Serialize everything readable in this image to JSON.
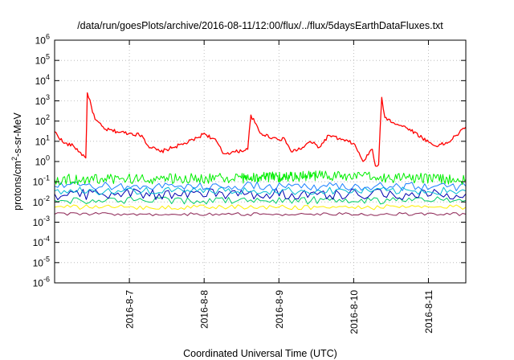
{
  "chart_data": {
    "type": "line",
    "title": "/data/run/goesPlots/archive/2016-08-11/12:00/flux/../flux/5daysEarthDataFluxes.txt",
    "xlabel": "Coordinated Universal Time (UTC)",
    "ylabel": {
      "base": "protons/cm",
      "sup": "2",
      "rest": "-s-sr-MeV"
    },
    "yscale": "log",
    "ylim": [
      1e-06,
      1000000.0
    ],
    "xlim": [
      "2016-08-06T00:00",
      "2016-08-11T12:00"
    ],
    "grid": true,
    "y_ticks": [
      {
        "exp": "-6",
        "value": 1e-06
      },
      {
        "exp": "-5",
        "value": 1e-05
      },
      {
        "exp": "-4",
        "value": 0.0001
      },
      {
        "exp": "-3",
        "value": 0.001
      },
      {
        "exp": "-2",
        "value": 0.01
      },
      {
        "exp": "-1",
        "value": 0.1
      },
      {
        "exp": "0",
        "value": 1
      },
      {
        "exp": "1",
        "value": 10
      },
      {
        "exp": "2",
        "value": 100
      },
      {
        "exp": "3",
        "value": 1000
      },
      {
        "exp": "4",
        "value": 10000
      },
      {
        "exp": "5",
        "value": 100000
      },
      {
        "exp": "6",
        "value": 1000000
      }
    ],
    "x_ticks": [
      {
        "label": "2016-8-7",
        "value": "2016-08-07T00:00"
      },
      {
        "label": "2016-8-8",
        "value": "2016-08-08T00:00"
      },
      {
        "label": "2016-8-9",
        "value": "2016-08-09T00:00"
      },
      {
        "label": "2016-8-10",
        "value": "2016-08-10T00:00"
      },
      {
        "label": "2016-8-11",
        "value": "2016-08-11T00:00"
      }
    ],
    "series": [
      {
        "color": "#ff0000",
        "points": [
          [
            "2016-08-06T00:00",
            30
          ],
          [
            "2016-08-06T03:00",
            8
          ],
          [
            "2016-08-06T06:00",
            6
          ],
          [
            "2016-08-06T08:00",
            3
          ],
          [
            "2016-08-06T10:00",
            1.5
          ],
          [
            "2016-08-06T10:30",
            2500
          ],
          [
            "2016-08-06T13:00",
            120
          ],
          [
            "2016-08-06T16:00",
            40
          ],
          [
            "2016-08-06T20:00",
            30
          ],
          [
            "2016-08-07T00:00",
            25
          ],
          [
            "2016-08-07T04:00",
            20
          ],
          [
            "2016-08-07T06:00",
            6
          ],
          [
            "2016-08-07T10:00",
            3
          ],
          [
            "2016-08-07T14:00",
            5
          ],
          [
            "2016-08-07T18:00",
            8
          ],
          [
            "2016-08-07T22:00",
            15
          ],
          [
            "2016-08-08T00:00",
            25
          ],
          [
            "2016-08-08T04:00",
            10
          ],
          [
            "2016-08-08T06:00",
            2.5
          ],
          [
            "2016-08-08T10:00",
            3
          ],
          [
            "2016-08-08T14:00",
            4
          ],
          [
            "2016-08-08T15:00",
            200
          ],
          [
            "2016-08-08T18:00",
            25
          ],
          [
            "2016-08-08T22:00",
            15
          ],
          [
            "2016-08-09T02:00",
            12
          ],
          [
            "2016-08-09T04:00",
            3
          ],
          [
            "2016-08-09T08:00",
            5
          ],
          [
            "2016-08-09T10:00",
            10
          ],
          [
            "2016-08-09T13:00",
            5
          ],
          [
            "2016-08-09T16:00",
            20
          ],
          [
            "2016-08-09T20:00",
            12
          ],
          [
            "2016-08-10T00:00",
            8
          ],
          [
            "2016-08-10T03:00",
            1
          ],
          [
            "2016-08-10T06:00",
            4
          ],
          [
            "2016-08-10T07:00",
            0.6
          ],
          [
            "2016-08-10T08:00",
            0.7
          ],
          [
            "2016-08-10T09:00",
            1500
          ],
          [
            "2016-08-10T10:00",
            150
          ],
          [
            "2016-08-10T14:00",
            70
          ],
          [
            "2016-08-10T18:00",
            40
          ],
          [
            "2016-08-10T22:00",
            15
          ],
          [
            "2016-08-11T02:00",
            6
          ],
          [
            "2016-08-11T06:00",
            8
          ],
          [
            "2016-08-11T09:00",
            20
          ],
          [
            "2016-08-11T12:00",
            50
          ]
        ]
      },
      {
        "color": "#00ee00",
        "points": [
          [
            "2016-08-06T00:00",
            0.13
          ],
          [
            "2016-08-08T12:00",
            0.15
          ],
          [
            "2016-08-09T12:00",
            0.2
          ],
          [
            "2016-08-11T12:00",
            0.13
          ]
        ]
      },
      {
        "color": "#1a80ff",
        "points": [
          [
            "2016-08-06T00:00",
            0.06
          ],
          [
            "2016-08-11T12:00",
            0.06
          ]
        ]
      },
      {
        "color": "#00bcd4",
        "points": [
          [
            "2016-08-06T00:00",
            0.035
          ],
          [
            "2016-08-11T12:00",
            0.035
          ]
        ]
      },
      {
        "color": "#0000b0",
        "points": [
          [
            "2016-08-06T00:00",
            0.025
          ],
          [
            "2016-08-11T12:00",
            0.025
          ]
        ]
      },
      {
        "color": "#00cc66",
        "points": [
          [
            "2016-08-06T00:00",
            0.012
          ],
          [
            "2016-08-11T12:00",
            0.012
          ]
        ]
      },
      {
        "color": "#ffee00",
        "points": [
          [
            "2016-08-06T00:00",
            0.0055
          ],
          [
            "2016-08-11T12:00",
            0.0055
          ]
        ]
      },
      {
        "color": "#8b2252",
        "points": [
          [
            "2016-08-06T00:00",
            0.0025
          ],
          [
            "2016-08-11T12:00",
            0.0025
          ]
        ]
      }
    ]
  }
}
